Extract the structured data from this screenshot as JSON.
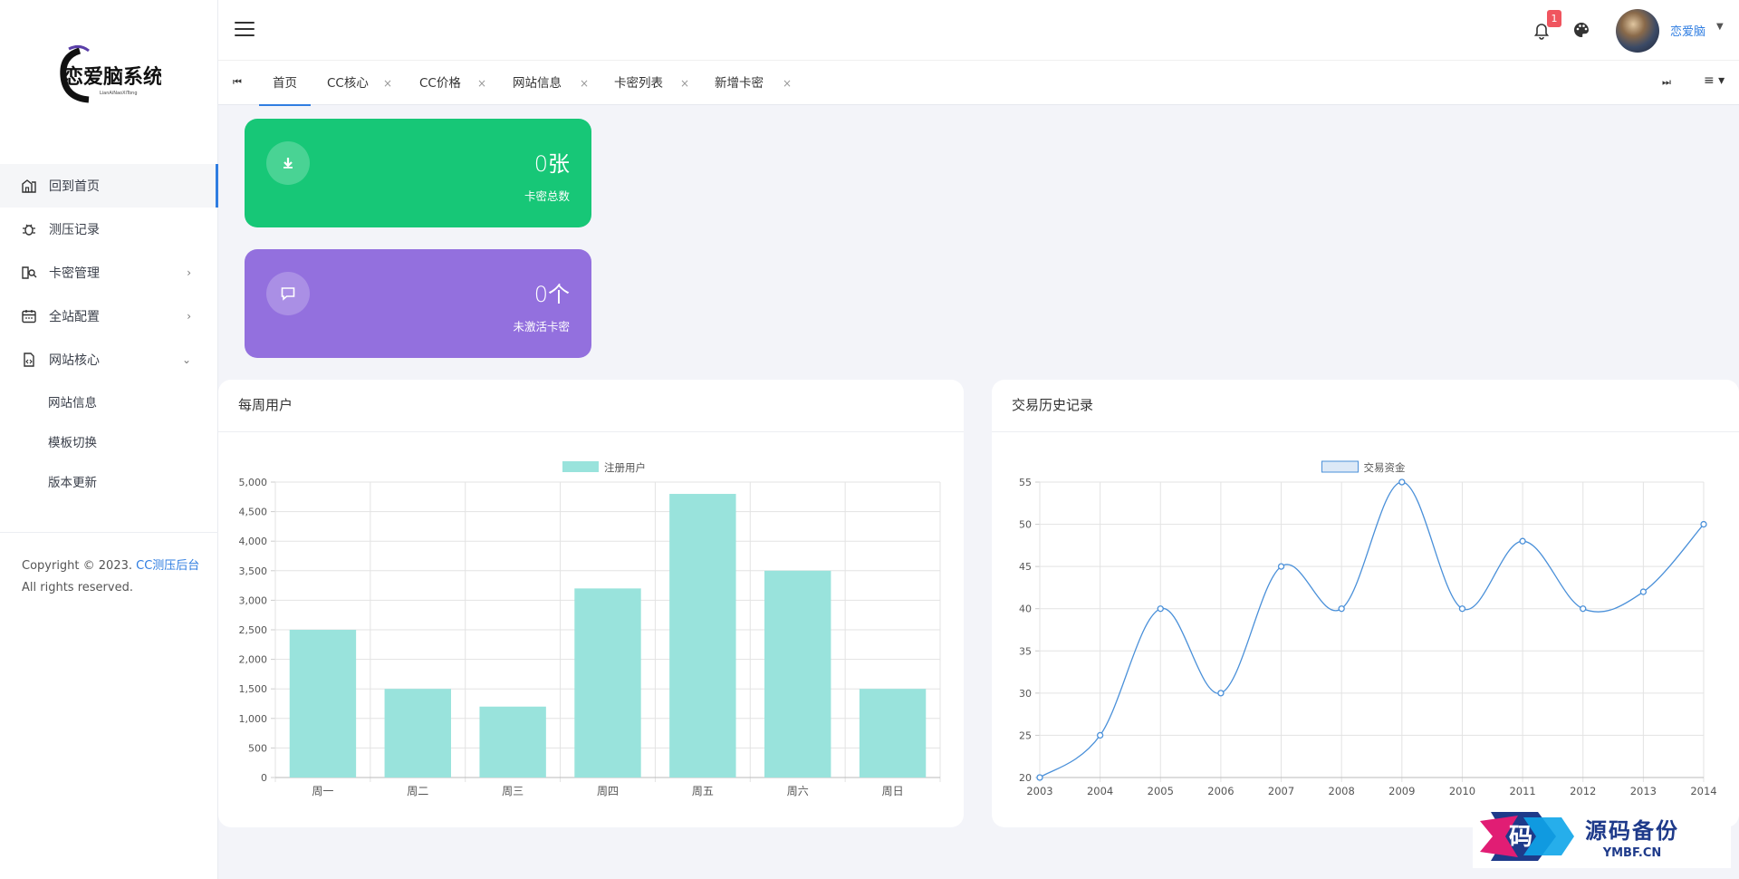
{
  "sidebar": {
    "menu": [
      {
        "label": "回到首页",
        "icon": "dashboard-icon"
      },
      {
        "label": "测压记录",
        "icon": "bug-icon"
      },
      {
        "label": "卡密管理",
        "icon": "card-search-icon"
      },
      {
        "label": "全站配置",
        "icon": "calendar-icon"
      },
      {
        "label": "网站核心",
        "icon": "file-code-icon"
      }
    ],
    "submenu": [
      "网站信息",
      "模板切换",
      "版本更新"
    ],
    "copyright_prefix": "Copyright © 2023.",
    "copyright_link": "CC测压后台",
    "copyright_suffix": "All rights reserved."
  },
  "header": {
    "notification_count": "1",
    "username": "恋爱脑"
  },
  "tabs": [
    "首页",
    "CC核心",
    "CC价格",
    "网站信息",
    "卡密列表",
    "新增卡密"
  ],
  "stats": [
    {
      "value": "0张",
      "label": "卡密总数",
      "color": "#17c777"
    },
    {
      "value": "0个",
      "label": "未激活卡密",
      "color": "#9370de"
    }
  ],
  "weekly_panel": {
    "title": "每周用户"
  },
  "trade_panel": {
    "title": "交易历史记录"
  },
  "chart_data": [
    {
      "type": "bar",
      "categories": [
        "周一",
        "周二",
        "周三",
        "周四",
        "周五",
        "周六",
        "周日"
      ],
      "series": [
        {
          "name": "注册用户",
          "values": [
            2500,
            1500,
            1200,
            3200,
            4800,
            3500,
            1500
          ],
          "color": "#99e3dc"
        }
      ],
      "ylim": [
        0,
        5000
      ],
      "yticks": [
        0,
        500,
        1000,
        1500,
        2000,
        2500,
        3000,
        3500,
        4000,
        4500,
        5000
      ],
      "grid": true,
      "legend": "top-center"
    },
    {
      "type": "line",
      "x": [
        "2003",
        "2004",
        "2005",
        "2006",
        "2007",
        "2008",
        "2009",
        "2010",
        "2011",
        "2012",
        "2013",
        "2014"
      ],
      "series": [
        {
          "name": "交易资金",
          "values": [
            20,
            25,
            40,
            30,
            45,
            40,
            55,
            40,
            48,
            40,
            42,
            50
          ],
          "color": "#4a90d9"
        }
      ],
      "ylim": [
        20,
        55
      ],
      "yticks": [
        20,
        25,
        30,
        35,
        40,
        45,
        50,
        55
      ],
      "grid": true,
      "legend": "top-center"
    }
  ],
  "watermark": {
    "cn": "源码备份",
    "en": "YMBF.CN"
  }
}
